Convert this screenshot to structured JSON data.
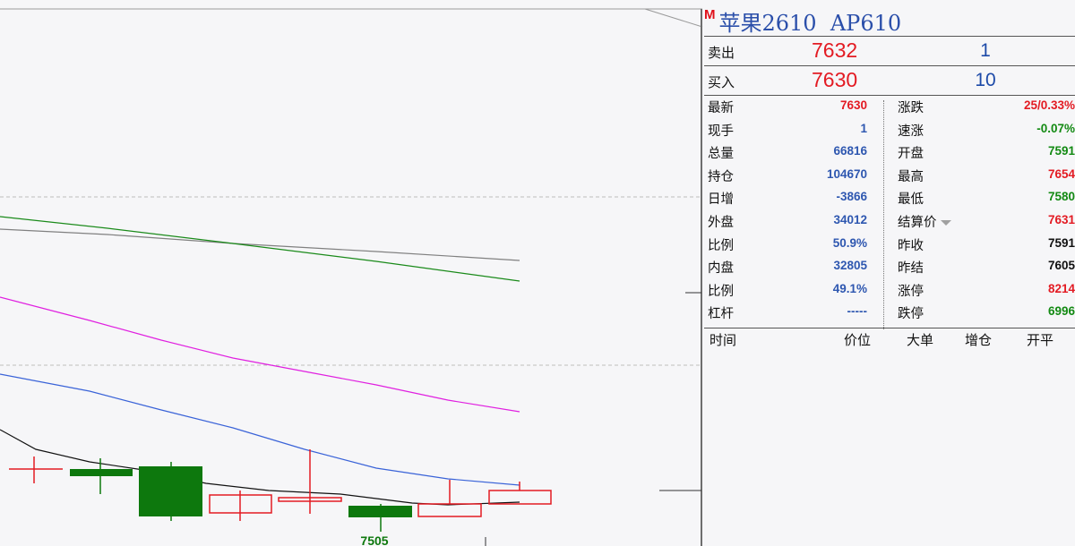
{
  "chart": {
    "price_label": "7505",
    "ma_colors": {
      "ma_a": "#808080",
      "ma_b": "#1a8a1a",
      "ma_c": "#e020e0",
      "ma_d": "#3a63d8",
      "ma_e": "#111111"
    },
    "candle_colors": {
      "up": "#e31b23",
      "down": "#0d780d"
    }
  },
  "quote": {
    "badge": "M",
    "name": "苹果2610",
    "code": "AP610",
    "ask": {
      "label": "卖出",
      "price": "7632",
      "volume": "1"
    },
    "bid": {
      "label": "买入",
      "price": "7630",
      "volume": "10"
    },
    "left_rows": [
      {
        "label": "最新",
        "value": "7630",
        "color": "red"
      },
      {
        "label": "现手",
        "value": "1",
        "color": "blue"
      },
      {
        "label": "总量",
        "value": "66816",
        "color": "blue"
      },
      {
        "label": "持仓",
        "value": "104670",
        "color": "blue"
      },
      {
        "label": "日增",
        "value": "-3866",
        "color": "blue"
      },
      {
        "label": "外盘",
        "value": "34012",
        "color": "blue"
      },
      {
        "label": "比例",
        "value": "50.9%",
        "color": "blue"
      },
      {
        "label": "内盘",
        "value": "32805",
        "color": "blue"
      },
      {
        "label": "比例",
        "value": "49.1%",
        "color": "blue"
      },
      {
        "label": "杠杆",
        "value": "-----",
        "color": "blue"
      }
    ],
    "right_rows": [
      {
        "label": "涨跌",
        "value": "25/0.33%",
        "color": "red"
      },
      {
        "label": "速涨",
        "value": "-0.07%",
        "color": "green"
      },
      {
        "label": "开盘",
        "value": "7591",
        "color": "green"
      },
      {
        "label": "最高",
        "value": "7654",
        "color": "red"
      },
      {
        "label": "最低",
        "value": "7580",
        "color": "green"
      },
      {
        "label": "结算价",
        "value": "7631",
        "color": "red",
        "dropdown": true
      },
      {
        "label": "昨收",
        "value": "7591",
        "color": "black"
      },
      {
        "label": "昨结",
        "value": "7605",
        "color": "black"
      },
      {
        "label": "涨停",
        "value": "8214",
        "color": "red"
      },
      {
        "label": "跌停",
        "value": "6996",
        "color": "green"
      }
    ],
    "trade_headers": {
      "time": "时间",
      "price": "价位",
      "big": "大单",
      "oi": "增仓",
      "open_close": "开平"
    }
  }
}
